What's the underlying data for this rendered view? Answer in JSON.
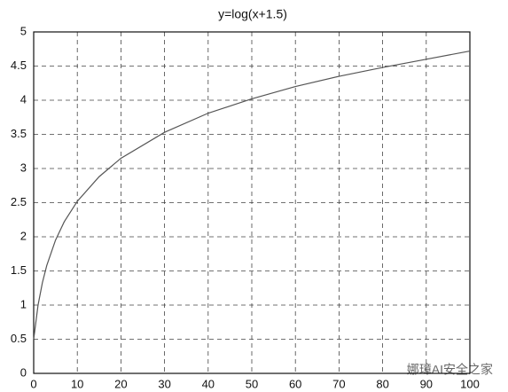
{
  "chart_data": {
    "type": "line",
    "title": "y=log(x+1.5)",
    "x": [
      0,
      1,
      2,
      3,
      5,
      7,
      10,
      15,
      20,
      30,
      40,
      50,
      60,
      70,
      80,
      90,
      100
    ],
    "series": [
      {
        "color": "#555555",
        "values": [
          0.5,
          1.0,
          1.33,
          1.58,
          1.95,
          2.22,
          2.52,
          2.88,
          3.15,
          3.53,
          3.81,
          4.02,
          4.2,
          4.35,
          4.48,
          4.6,
          4.72
        ]
      }
    ],
    "xlim": [
      0,
      100
    ],
    "xticks": [
      0,
      10,
      20,
      30,
      40,
      50,
      60,
      70,
      80,
      90,
      100
    ],
    "ylim": [
      0,
      5
    ],
    "yticks": [
      0,
      0.5,
      1,
      1.5,
      2,
      2.5,
      3,
      3.5,
      4,
      4.5,
      5
    ],
    "grid": true
  },
  "watermark": "娜璋AI安全之家"
}
